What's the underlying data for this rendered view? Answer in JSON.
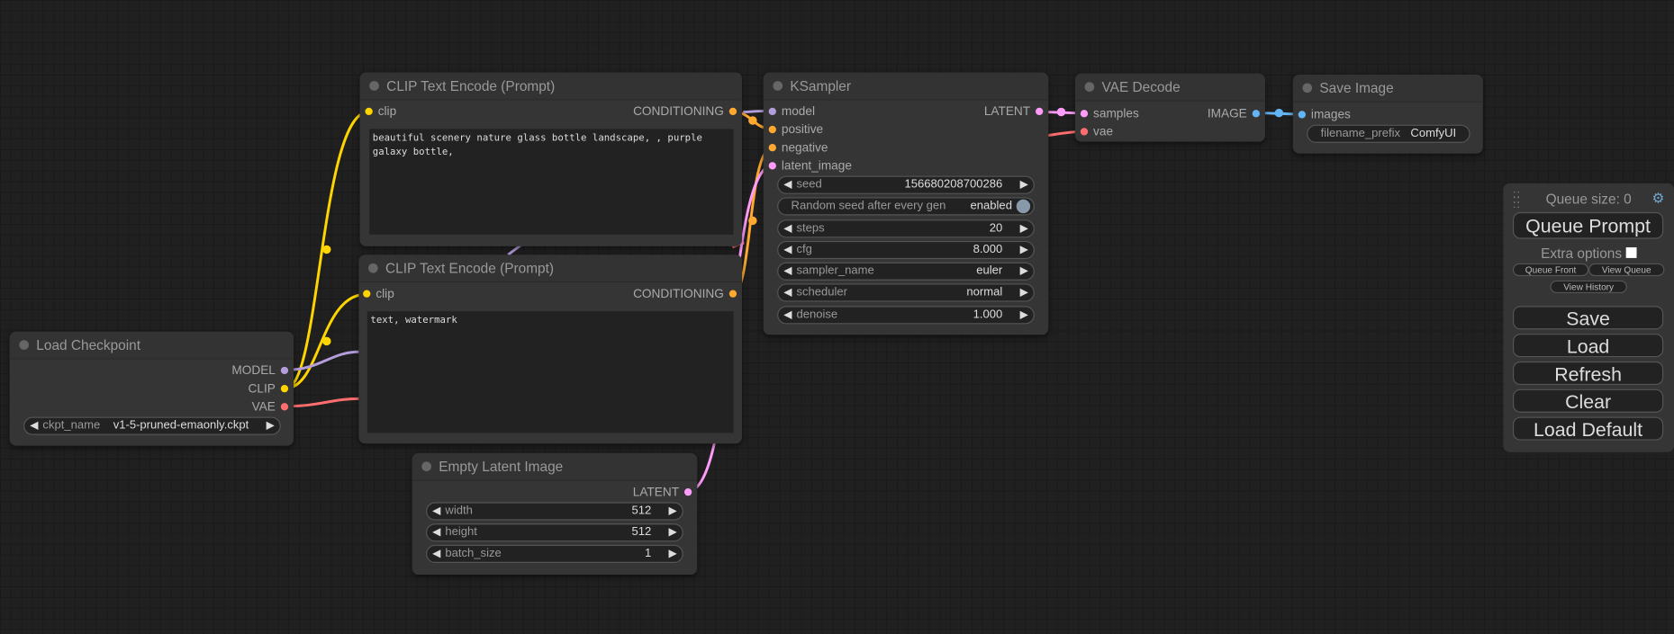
{
  "nodes": {
    "clip_pos": {
      "title": "CLIP Text Encode (Prompt)",
      "input": "clip",
      "output": "CONDITIONING",
      "text": "beautiful scenery nature glass bottle landscape, , purple galaxy bottle,"
    },
    "clip_neg": {
      "title": "CLIP Text Encode (Prompt)",
      "input": "clip",
      "output": "CONDITIONING",
      "text": "text, watermark"
    },
    "ksampler": {
      "title": "KSampler",
      "inputs": [
        "model",
        "positive",
        "negative",
        "latent_image"
      ],
      "output": "LATENT",
      "widgets": [
        {
          "name": "seed",
          "value": "156680208700286"
        },
        {
          "name": "steps",
          "value": "20"
        },
        {
          "name": "cfg",
          "value": "8.000"
        },
        {
          "name": "sampler_name",
          "value": "euler"
        },
        {
          "name": "scheduler",
          "value": "normal"
        },
        {
          "name": "denoise",
          "value": "1.000"
        }
      ],
      "toggle": {
        "label": "Random seed after every gen",
        "value": "enabled"
      }
    },
    "vae_decode": {
      "title": "VAE Decode",
      "inputs": [
        "samples",
        "vae"
      ],
      "output": "IMAGE"
    },
    "save_image": {
      "title": "Save Image",
      "input": "images",
      "widget": {
        "name": "filename_prefix",
        "value": "ComfyUI"
      }
    },
    "load_checkpoint": {
      "title": "Load Checkpoint",
      "outputs": [
        "MODEL",
        "CLIP",
        "VAE"
      ],
      "widget": {
        "name": "ckpt_name",
        "value": "v1-5-pruned-emaonly.ckpt"
      }
    },
    "empty_latent": {
      "title": "Empty Latent Image",
      "output": "LATENT",
      "widgets": [
        {
          "name": "width",
          "value": "512"
        },
        {
          "name": "height",
          "value": "512"
        },
        {
          "name": "batch_size",
          "value": "1"
        }
      ]
    }
  },
  "panel": {
    "queue_size": "Queue size: 0",
    "queue_prompt": "Queue Prompt",
    "extra_options": "Extra options",
    "queue_front": "Queue Front",
    "view_queue": "View Queue",
    "view_history": "View History",
    "save": "Save",
    "load": "Load",
    "refresh": "Refresh",
    "clear": "Clear",
    "load_default": "Load Default"
  },
  "colors": {
    "clip": "#ffd500",
    "conditioning": "#ffa931",
    "model": "#b39ddb",
    "latent": "#ff9cf9",
    "vae": "#ff6e6e",
    "image": "#64b5f6"
  }
}
